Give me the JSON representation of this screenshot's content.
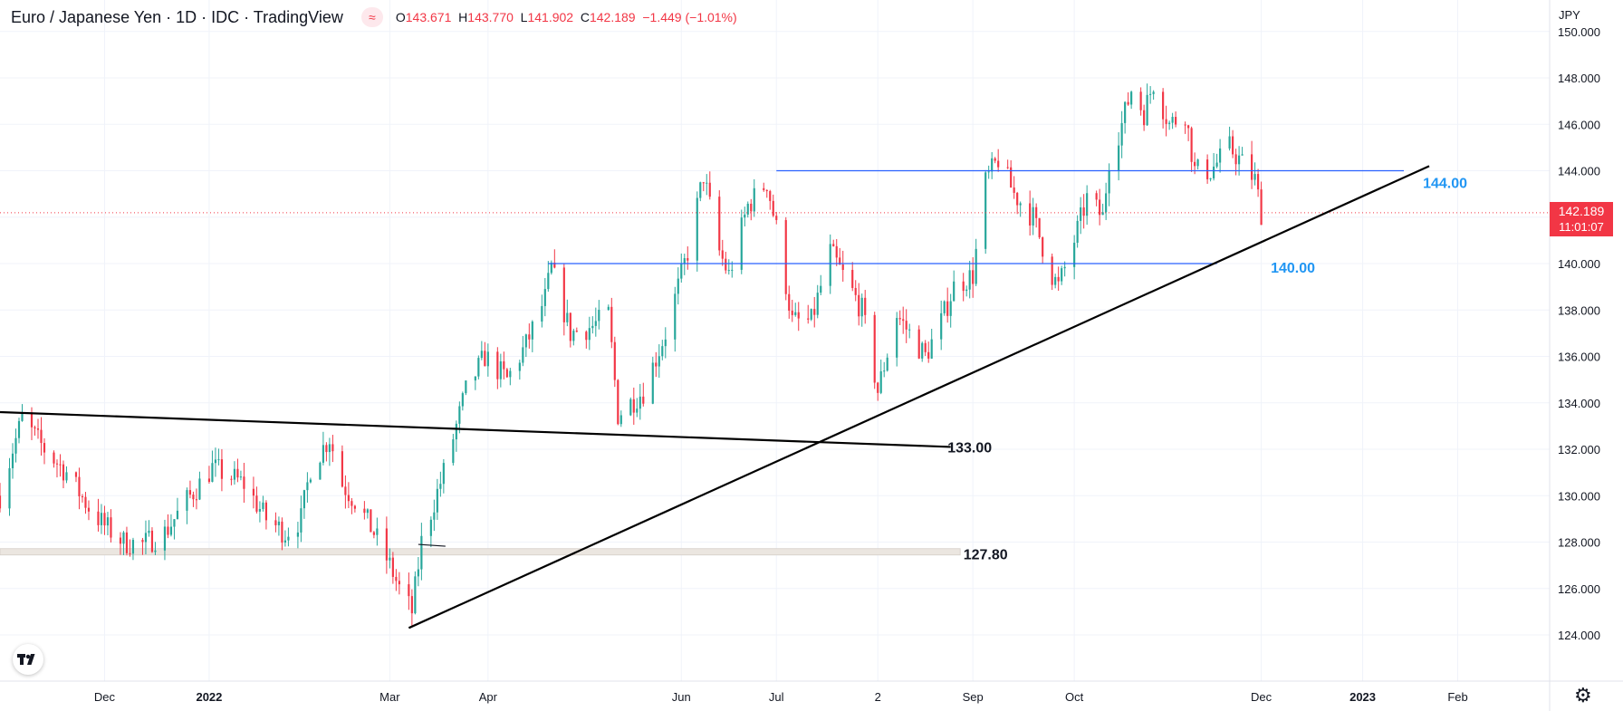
{
  "header": {
    "title": "Euro / Japanese Yen · 1D · IDC · TradingView",
    "badge": "≈",
    "ohlc": {
      "o_label": "O",
      "o": "143.671",
      "h_label": "H",
      "h": "143.770",
      "l_label": "L",
      "l": "141.902",
      "c_label": "C",
      "c": "142.189",
      "change": "−1.449 (−1.01%)"
    }
  },
  "price_axis": {
    "currency": "JPY",
    "last_price": "142.189",
    "countdown": "11:01:07"
  },
  "icons": {
    "logo": "tradingview-logo",
    "settings": "gear-icon"
  },
  "colors": {
    "up": "#26a69a",
    "down": "#f23645",
    "hline": "#2962ff",
    "hlabel": "#2196f3",
    "trend": "#000000"
  },
  "chart_data": {
    "type": "candlestick",
    "symbol": "EURJPY",
    "ylim": [
      123,
      150
    ],
    "y_ticks": [
      "124.000",
      "126.000",
      "128.000",
      "130.000",
      "132.000",
      "134.000",
      "136.000",
      "138.000",
      "140.000",
      "142.000",
      "144.000",
      "146.000",
      "148.000",
      "150.000"
    ],
    "x_labels": [
      {
        "label": "Dec",
        "date": "2021-12-01"
      },
      {
        "label": "2022",
        "date": "2022-01-03"
      },
      {
        "label": "Mar",
        "date": "2022-03-01"
      },
      {
        "label": "Apr",
        "date": "2022-04-01"
      },
      {
        "label": "Jun",
        "date": "2022-06-01"
      },
      {
        "label": "Jul",
        "date": "2022-07-01"
      },
      {
        "label": "2",
        "date": "2022-08-02"
      },
      {
        "label": "Sep",
        "date": "2022-09-01"
      },
      {
        "label": "Oct",
        "date": "2022-10-03"
      },
      {
        "label": "Dec",
        "date": "2022-12-01"
      },
      {
        "label": "2023",
        "date": "2023-01-02"
      },
      {
        "label": "Feb",
        "date": "2023-02-01"
      }
    ],
    "close_path": [
      [
        "2021-10-29",
        130.0
      ],
      [
        "2021-11-02",
        132.0
      ],
      [
        "2021-11-05",
        133.3
      ],
      [
        "2021-11-12",
        132.0
      ],
      [
        "2021-11-19",
        131.0
      ],
      [
        "2021-11-26",
        129.5
      ],
      [
        "2021-12-01",
        128.7
      ],
      [
        "2021-12-07",
        128.0
      ],
      [
        "2021-12-13",
        127.9
      ],
      [
        "2021-12-20",
        128.4
      ],
      [
        "2021-12-27",
        129.8
      ],
      [
        "2022-01-04",
        131.2
      ],
      [
        "2022-01-10",
        130.8
      ],
      [
        "2022-01-14",
        130.5
      ],
      [
        "2022-01-21",
        129.0
      ],
      [
        "2022-01-27",
        128.4
      ],
      [
        "2022-02-01",
        129.0
      ],
      [
        "2022-02-04",
        131.2
      ],
      [
        "2022-02-10",
        132.5
      ],
      [
        "2022-02-14",
        130.5
      ],
      [
        "2022-02-18",
        129.8
      ],
      [
        "2022-02-24",
        128.4
      ],
      [
        "2022-03-01",
        127.0
      ],
      [
        "2022-03-04",
        126.0
      ],
      [
        "2022-03-08",
        125.0
      ],
      [
        "2022-03-11",
        128.0
      ],
      [
        "2022-03-18",
        131.0
      ],
      [
        "2022-03-25",
        134.5
      ],
      [
        "2022-03-31",
        136.0
      ],
      [
        "2022-04-07",
        135.0
      ],
      [
        "2022-04-13",
        136.5
      ],
      [
        "2022-04-19",
        138.5
      ],
      [
        "2022-04-21",
        139.8
      ],
      [
        "2022-04-27",
        137.0
      ],
      [
        "2022-05-04",
        137.3
      ],
      [
        "2022-05-09",
        137.8
      ],
      [
        "2022-05-12",
        133.5
      ],
      [
        "2022-05-20",
        134.5
      ],
      [
        "2022-05-27",
        137.0
      ],
      [
        "2022-06-03",
        140.5
      ],
      [
        "2022-06-08",
        143.8
      ],
      [
        "2022-06-13",
        140.5
      ],
      [
        "2022-06-16",
        139.5
      ],
      [
        "2022-06-22",
        142.5
      ],
      [
        "2022-06-28",
        143.5
      ],
      [
        "2022-07-01",
        141.5
      ],
      [
        "2022-07-06",
        137.5
      ],
      [
        "2022-07-12",
        137.5
      ],
      [
        "2022-07-18",
        140.5
      ],
      [
        "2022-07-22",
        139.5
      ],
      [
        "2022-07-28",
        138.0
      ],
      [
        "2022-08-02",
        134.5
      ],
      [
        "2022-08-08",
        137.8
      ],
      [
        "2022-08-12",
        137.0
      ],
      [
        "2022-08-17",
        136.0
      ],
      [
        "2022-08-22",
        137.5
      ],
      [
        "2022-08-26",
        139.0
      ],
      [
        "2022-09-01",
        139.5
      ],
      [
        "2022-09-05",
        143.5
      ],
      [
        "2022-09-09",
        144.5
      ],
      [
        "2022-09-14",
        143.0
      ],
      [
        "2022-09-20",
        142.0
      ],
      [
        "2022-09-26",
        139.5
      ],
      [
        "2022-09-28",
        139.0
      ],
      [
        "2022-10-03",
        141.0
      ],
      [
        "2022-10-07",
        142.8
      ],
      [
        "2022-10-12",
        142.0
      ],
      [
        "2022-10-14",
        144.5
      ],
      [
        "2022-10-18",
        146.0
      ],
      [
        "2022-10-21",
        147.5
      ],
      [
        "2022-10-25",
        146.5
      ],
      [
        "2022-10-28",
        147.8
      ],
      [
        "2022-11-02",
        146.0
      ],
      [
        "2022-11-07",
        146.5
      ],
      [
        "2022-11-10",
        144.0
      ],
      [
        "2022-11-15",
        144.0
      ],
      [
        "2022-11-21",
        145.0
      ],
      [
        "2022-11-24",
        144.5
      ],
      [
        "2022-11-29",
        143.6
      ],
      [
        "2022-12-01",
        142.2
      ]
    ],
    "horizontal_levels": [
      {
        "label": "144.00",
        "price": 144.0,
        "from": "2022-07-01",
        "to": "2023-01-15"
      },
      {
        "label": "140.00",
        "price": 140.0,
        "from": "2022-04-20",
        "to": "2022-11-17"
      }
    ],
    "trend_lines": [
      {
        "from": [
          "2022-03-07",
          124.3
        ],
        "to": [
          "2023-01-23",
          144.2
        ]
      },
      {
        "from": [
          "2021-10-29",
          133.6
        ],
        "to": [
          "2022-08-25",
          132.1
        ]
      }
    ],
    "zone": {
      "label": "127.80",
      "price": 127.6,
      "from": "2021-10-29",
      "to": "2022-08-28"
    },
    "text_labels": [
      {
        "text": "133.00",
        "date": "2022-08-31",
        "price": 132.1
      },
      {
        "text": "127.80",
        "date": "2022-09-05",
        "price": 127.5
      }
    ],
    "marker": {
      "date": "2022-03-10",
      "price": 127.9
    }
  }
}
